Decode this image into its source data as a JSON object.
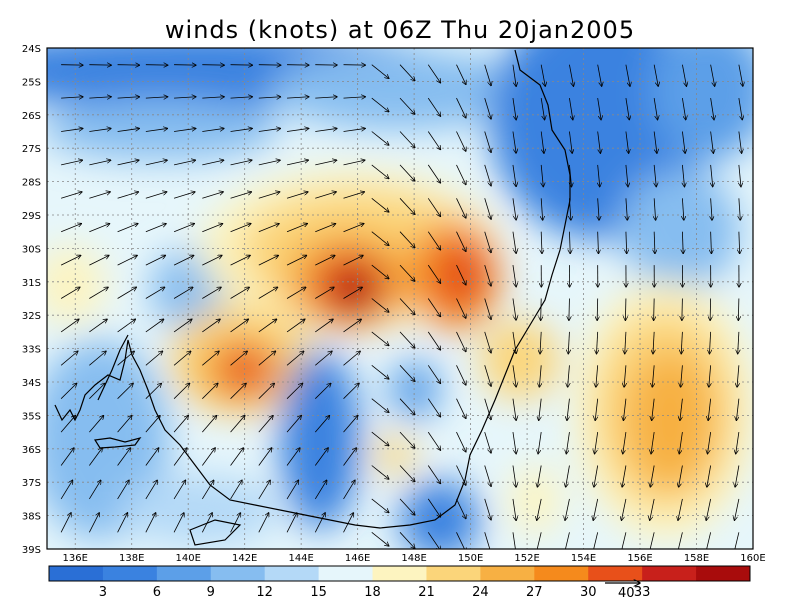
{
  "title": "winds (knots) at 06Z Thu 20jan2005",
  "map": {
    "lon_range": [
      135,
      160
    ],
    "lat_range": [
      -39,
      -24
    ],
    "lon_ticks": [
      "136E",
      "138E",
      "140E",
      "142E",
      "144E",
      "146E",
      "148E",
      "150E",
      "152E",
      "154E",
      "156E",
      "158E",
      "160E"
    ],
    "lat_ticks": [
      "24S",
      "25S",
      "26S",
      "27S",
      "28S",
      "29S",
      "30S",
      "31S",
      "32S",
      "33S",
      "34S",
      "35S",
      "36S",
      "37S",
      "38S",
      "39S"
    ],
    "grid": "dotted",
    "field": "wind speed (knots), shaded",
    "vectors": "wind direction arrows"
  },
  "colorbar": {
    "labels": [
      "3",
      "6",
      "9",
      "12",
      "15",
      "18",
      "21",
      "24",
      "27",
      "30",
      "33"
    ],
    "colors": [
      "#2a6fd6",
      "#3a82e0",
      "#5c9fe8",
      "#86bdf0",
      "#b4d9f7",
      "#e6f6fb",
      "#fdf4c0",
      "#fbd57a",
      "#f7b043",
      "#f58a1c",
      "#e8501a",
      "#c8201b",
      "#a80c0c"
    ],
    "vector_ref": "40"
  },
  "colors": {
    "coast": "#000000",
    "grid": "#888888"
  }
}
